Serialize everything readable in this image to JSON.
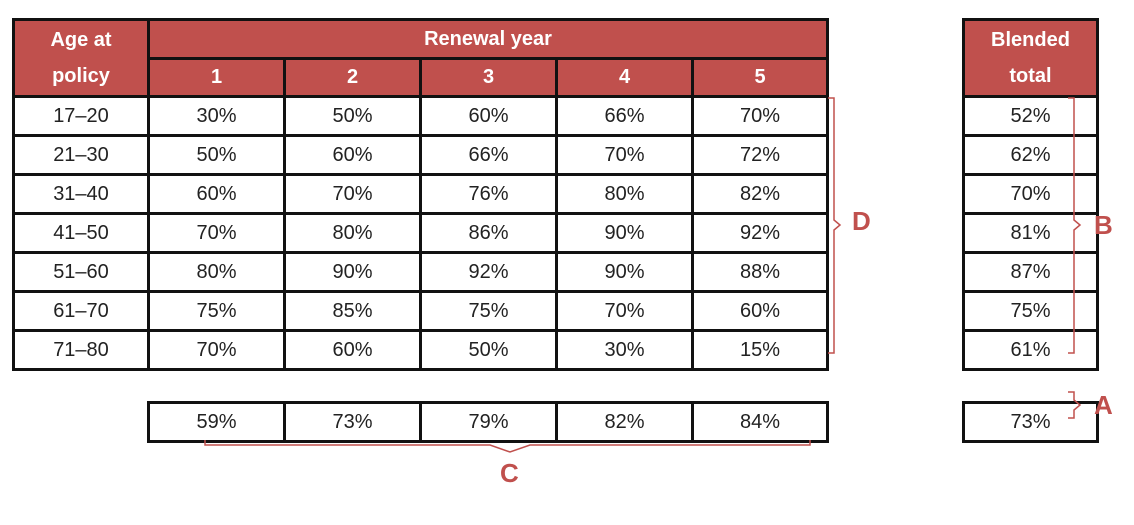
{
  "main_table": {
    "age_header": [
      "Age at",
      "policy"
    ],
    "renewal_header": "Renewal year",
    "years": [
      "1",
      "2",
      "3",
      "4",
      "5"
    ],
    "rows": [
      {
        "age": "17–20",
        "values": [
          "30%",
          "50%",
          "60%",
          "66%",
          "70%"
        ]
      },
      {
        "age": "21–30",
        "values": [
          "50%",
          "60%",
          "66%",
          "70%",
          "72%"
        ]
      },
      {
        "age": "31–40",
        "values": [
          "60%",
          "70%",
          "76%",
          "80%",
          "82%"
        ]
      },
      {
        "age": "41–50",
        "values": [
          "70%",
          "80%",
          "86%",
          "90%",
          "92%"
        ]
      },
      {
        "age": "51–60",
        "values": [
          "80%",
          "90%",
          "92%",
          "90%",
          "88%"
        ]
      },
      {
        "age": "61–70",
        "values": [
          "75%",
          "85%",
          "75%",
          "70%",
          "60%"
        ]
      },
      {
        "age": "71–80",
        "values": [
          "70%",
          "60%",
          "50%",
          "30%",
          "15%"
        ]
      }
    ]
  },
  "blended": {
    "header": [
      "Blended",
      "total"
    ],
    "values": [
      "52%",
      "62%",
      "70%",
      "81%",
      "87%",
      "75%",
      "61%"
    ]
  },
  "year_totals": [
    "59%",
    "73%",
    "79%",
    "82%",
    "84%"
  ],
  "grand_total": "73%",
  "labels": {
    "a": "A",
    "b": "B",
    "c": "C",
    "d": "D"
  },
  "colors": {
    "header_bg": "#c0504d",
    "brace": "#c0504d",
    "border": "#111111"
  }
}
